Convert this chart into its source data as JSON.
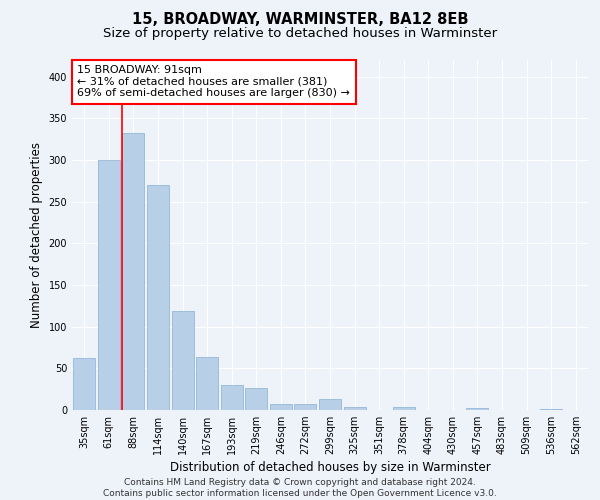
{
  "title": "15, BROADWAY, WARMINSTER, BA12 8EB",
  "subtitle": "Size of property relative to detached houses in Warminster",
  "xlabel": "Distribution of detached houses by size in Warminster",
  "ylabel": "Number of detached properties",
  "categories": [
    "35sqm",
    "61sqm",
    "88sqm",
    "114sqm",
    "140sqm",
    "167sqm",
    "193sqm",
    "219sqm",
    "246sqm",
    "272sqm",
    "299sqm",
    "325sqm",
    "351sqm",
    "378sqm",
    "404sqm",
    "430sqm",
    "457sqm",
    "483sqm",
    "509sqm",
    "536sqm",
    "562sqm"
  ],
  "values": [
    62,
    300,
    332,
    270,
    119,
    64,
    30,
    27,
    7,
    7,
    13,
    4,
    0,
    4,
    0,
    0,
    3,
    0,
    0,
    1,
    0
  ],
  "bar_color": "#b8cfe8",
  "bar_edge_color": "#8aafd4",
  "highlight_line_index": 2,
  "annotation_text": "15 BROADWAY: 91sqm\n← 31% of detached houses are smaller (381)\n69% of semi-detached houses are larger (830) →",
  "annotation_box_color": "white",
  "annotation_box_edge_color": "red",
  "ylim": [
    0,
    420
  ],
  "yticks": [
    0,
    50,
    100,
    150,
    200,
    250,
    300,
    350,
    400
  ],
  "footer_line1": "Contains HM Land Registry data © Crown copyright and database right 2024.",
  "footer_line2": "Contains public sector information licensed under the Open Government Licence v3.0.",
  "background_color": "#eef2f9",
  "grid_color": "white",
  "title_fontsize": 10.5,
  "subtitle_fontsize": 9.5,
  "xlabel_fontsize": 8.5,
  "ylabel_fontsize": 8.5,
  "tick_fontsize": 7,
  "annotation_fontsize": 8,
  "footer_fontsize": 6.5
}
